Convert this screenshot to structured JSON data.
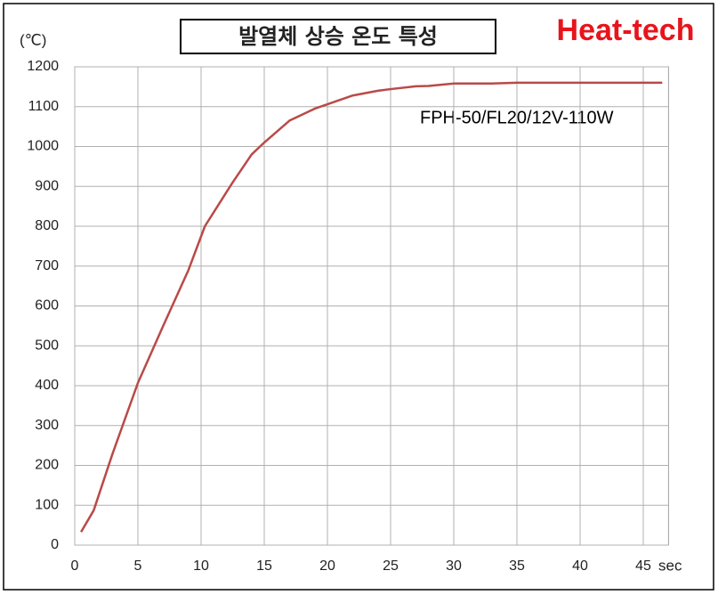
{
  "chart_data": {
    "type": "line",
    "title": "발열체 상승 온도 특성",
    "brand": "Heat-tech",
    "annotation": "FPH-50/FL20/12V-110W",
    "y_label": "(℃)",
    "x_label": "sec",
    "x": [
      0.5,
      1.5,
      3,
      5,
      7,
      9,
      10.3,
      12.5,
      14,
      15,
      17,
      19,
      20,
      22,
      24,
      25,
      27,
      28,
      30,
      33,
      35,
      40,
      45,
      46.5
    ],
    "y": [
      33,
      87,
      230,
      407,
      550,
      690,
      800,
      910,
      980,
      1010,
      1065,
      1095,
      1106,
      1128,
      1140,
      1144,
      1151,
      1152,
      1158,
      1158,
      1160,
      1160,
      1160,
      1160
    ],
    "color": "#b94a48",
    "xlim": [
      0,
      47
    ],
    "xticks": [
      0,
      5,
      10,
      15,
      20,
      25,
      30,
      35,
      40,
      45
    ],
    "ylim": [
      0,
      1200
    ],
    "yticks": [
      0,
      100,
      200,
      300,
      400,
      500,
      600,
      700,
      800,
      900,
      1000,
      1100,
      1200
    ],
    "grid": true
  }
}
